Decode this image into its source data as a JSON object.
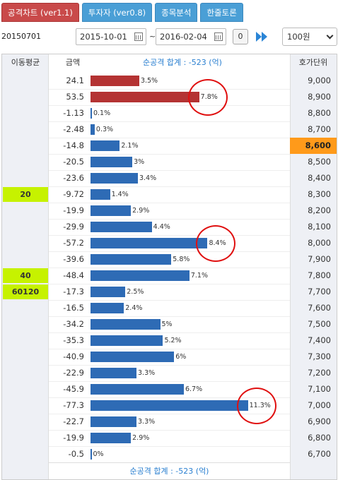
{
  "tabs": [
    {
      "label": "공격차트 (ver1.1)",
      "active": true
    },
    {
      "label": "투자자 (ver0.8)",
      "active": false
    },
    {
      "label": "종목분석",
      "active": false
    },
    {
      "label": "한줄토론",
      "active": false
    }
  ],
  "toolbar": {
    "code": "20150701",
    "start_date": "2015-10-01",
    "separator": "~",
    "end_date": "2016-02-04",
    "zero_button": "0",
    "unit_select": "100원"
  },
  "table": {
    "header_ma": "이동평균",
    "header_amount": "금액",
    "header_total": "순공격 합계 : -523 (억)",
    "header_price": "호가단위",
    "footer_total": "순공격 합계 : -523 (억)"
  },
  "chart_data": {
    "type": "bar",
    "title": "순공격 합계 : -523 (억)",
    "x_label": "금액",
    "y_label": "호가단위",
    "rows": [
      {
        "price": "9,000",
        "amount": "24.1",
        "pct": "3.5%",
        "pct_value": 3.5,
        "sign": "pos",
        "ma": ""
      },
      {
        "price": "8,900",
        "amount": "53.5",
        "pct": "7.8%",
        "pct_value": 7.8,
        "sign": "pos",
        "ma": ""
      },
      {
        "price": "8,800",
        "amount": "-1.13",
        "pct": "0.1%",
        "pct_value": 0.1,
        "sign": "neg",
        "ma": ""
      },
      {
        "price": "8,700",
        "amount": "-2.48",
        "pct": "0.3%",
        "pct_value": 0.3,
        "sign": "neg",
        "ma": ""
      },
      {
        "price": "8,600",
        "amount": "-14.8",
        "pct": "2.1%",
        "pct_value": 2.1,
        "sign": "neg",
        "ma": "",
        "highlight": true
      },
      {
        "price": "8,500",
        "amount": "-20.5",
        "pct": "3%",
        "pct_value": 3.0,
        "sign": "neg",
        "ma": ""
      },
      {
        "price": "8,400",
        "amount": "-23.6",
        "pct": "3.4%",
        "pct_value": 3.4,
        "sign": "neg",
        "ma": ""
      },
      {
        "price": "8,300",
        "amount": "-9.72",
        "pct": "1.4%",
        "pct_value": 1.4,
        "sign": "neg",
        "ma": "20"
      },
      {
        "price": "8,200",
        "amount": "-19.9",
        "pct": "2.9%",
        "pct_value": 2.9,
        "sign": "neg",
        "ma": ""
      },
      {
        "price": "8,100",
        "amount": "-29.9",
        "pct": "4.4%",
        "pct_value": 4.4,
        "sign": "neg",
        "ma": ""
      },
      {
        "price": "8,000",
        "amount": "-57.2",
        "pct": "8.4%",
        "pct_value": 8.4,
        "sign": "neg",
        "ma": ""
      },
      {
        "price": "7,900",
        "amount": "-39.6",
        "pct": "5.8%",
        "pct_value": 5.8,
        "sign": "neg",
        "ma": ""
      },
      {
        "price": "7,800",
        "amount": "-48.4",
        "pct": "7.1%",
        "pct_value": 7.1,
        "sign": "neg",
        "ma": "40"
      },
      {
        "price": "7,700",
        "amount": "-17.3",
        "pct": "2.5%",
        "pct_value": 2.5,
        "sign": "neg",
        "ma": "60120"
      },
      {
        "price": "7,600",
        "amount": "-16.5",
        "pct": "2.4%",
        "pct_value": 2.4,
        "sign": "neg",
        "ma": ""
      },
      {
        "price": "7,500",
        "amount": "-34.2",
        "pct": "5%",
        "pct_value": 5.0,
        "sign": "neg",
        "ma": ""
      },
      {
        "price": "7,400",
        "amount": "-35.3",
        "pct": "5.2%",
        "pct_value": 5.2,
        "sign": "neg",
        "ma": ""
      },
      {
        "price": "7,300",
        "amount": "-40.9",
        "pct": "6%",
        "pct_value": 6.0,
        "sign": "neg",
        "ma": ""
      },
      {
        "price": "7,200",
        "amount": "-22.9",
        "pct": "3.3%",
        "pct_value": 3.3,
        "sign": "neg",
        "ma": ""
      },
      {
        "price": "7,100",
        "amount": "-45.9",
        "pct": "6.7%",
        "pct_value": 6.7,
        "sign": "neg",
        "ma": ""
      },
      {
        "price": "7,000",
        "amount": "-77.3",
        "pct": "11.3%",
        "pct_value": 11.3,
        "sign": "neg",
        "ma": ""
      },
      {
        "price": "6,900",
        "amount": "-22.7",
        "pct": "3.3%",
        "pct_value": 3.3,
        "sign": "neg",
        "ma": ""
      },
      {
        "price": "6,800",
        "amount": "-19.9",
        "pct": "2.9%",
        "pct_value": 2.9,
        "sign": "neg",
        "ma": ""
      },
      {
        "price": "6,700",
        "amount": "-0.5",
        "pct": "0%",
        "pct_value": 0.0,
        "sign": "neg",
        "ma": ""
      }
    ],
    "circled_rows": [
      "8,900",
      "8,000",
      "7,000"
    ]
  },
  "colors": {
    "pos_bar": "#b43333",
    "neg_bar": "#2e6bb5",
    "ma_badge": "#c6f200",
    "price_highlight": "#ff9a1a",
    "total_text": "#2a7fd0"
  }
}
